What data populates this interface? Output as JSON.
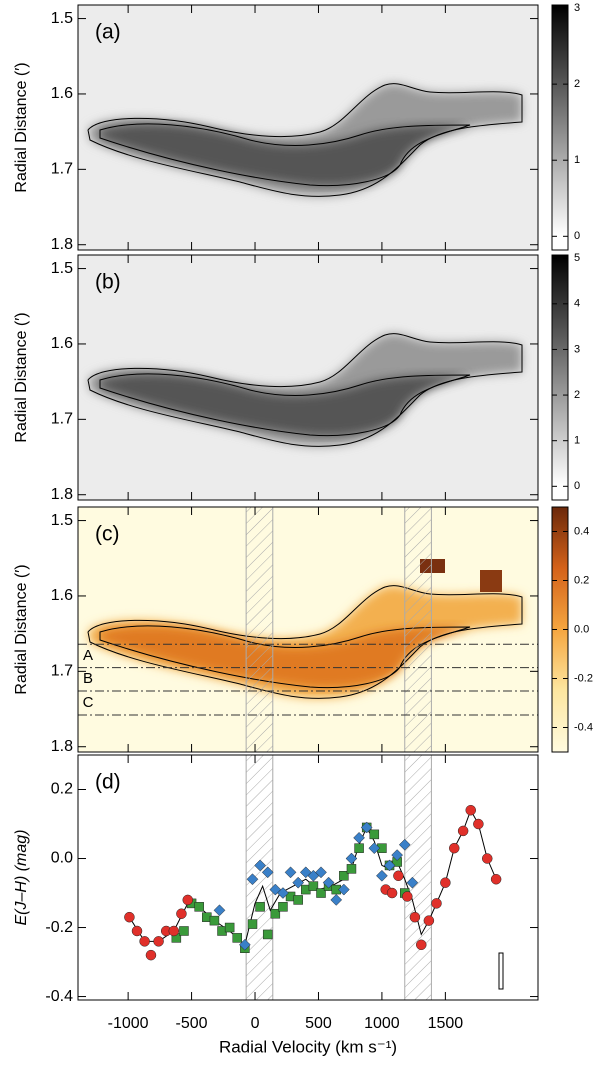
{
  "chart_data": [
    {
      "type": "image",
      "label": "(a)",
      "ylabel": "Radial Distance (′)",
      "xlim": [
        -1395,
        2230
      ],
      "xticks": [
        -1000,
        -500,
        0,
        500,
        1000,
        1500
      ],
      "ylim": [
        1.482,
        1.807
      ],
      "yticks": [
        1.5,
        1.6,
        1.7,
        1.8
      ],
      "colorbar": {
        "colormap": "gray",
        "lim": [
          -0.18,
          3.04
        ],
        "ticks": [
          0,
          1,
          2,
          3
        ]
      }
    },
    {
      "type": "image",
      "label": "(b)",
      "ylabel": "Radial Distance (′)",
      "xlim": [
        -1395,
        2230
      ],
      "xticks": [
        -1000,
        -500,
        0,
        500,
        1000,
        1500
      ],
      "ylim": [
        1.482,
        1.807
      ],
      "yticks": [
        1.5,
        1.6,
        1.7,
        1.8
      ],
      "colorbar": {
        "colormap": "gray",
        "lim": [
          -0.3,
          5.07
        ],
        "ticks": [
          0,
          1,
          2,
          3,
          4,
          5
        ]
      }
    },
    {
      "type": "image",
      "label": "(c)",
      "ylabel": "Radial Distance (′)",
      "xlim": [
        -1395,
        2230
      ],
      "xticks": [
        -1000,
        -500,
        0,
        500,
        1000,
        1500
      ],
      "ylim": [
        1.482,
        1.807
      ],
      "yticks": [
        1.5,
        1.6,
        1.7,
        1.8
      ],
      "colorbar": {
        "colormap": "orange",
        "lim": [
          -0.5,
          0.5
        ],
        "ticks": [
          -0.4,
          -0.2,
          {
            "value": 0,
            "label": "0.0"
          },
          0.2,
          0.4
        ]
      },
      "bands": [
        [
          -70,
          140
        ],
        [
          1180,
          1390
        ]
      ],
      "cuts": [
        1.664,
        1.695,
        1.726,
        1.758
      ],
      "cut_labels": [
        {
          "text": "A",
          "color": "#e0302a"
        },
        {
          "text": "B",
          "color": "#3a9a3a"
        },
        {
          "text": "C",
          "color": "#3a80c8"
        }
      ]
    },
    {
      "type": "scatter",
      "label": "(d)",
      "ylabel": "E(J–H) (mag)",
      "xlabel": "Radial Velocity (km s⁻¹)",
      "xlim": [
        -1395,
        2230
      ],
      "xticks": [
        -1000,
        -500,
        0,
        500,
        1000,
        1500
      ],
      "ylim": [
        -0.41,
        0.3
      ],
      "yticks": [
        -0.4,
        -0.2,
        {
          "value": 0,
          "label": "0.0"
        },
        0.2
      ],
      "bands": [
        [
          -70,
          140
        ],
        [
          1180,
          1390
        ]
      ],
      "series": [
        {
          "color": "#000000",
          "marker": "line",
          "x": [
            -990,
            -870,
            -760,
            -640,
            -530,
            -440,
            -320,
            -200,
            -80,
            0,
            60,
            120,
            200,
            300,
            400,
            500,
            600,
            700,
            760,
            820,
            880,
            940,
            1000,
            1060,
            1120,
            1180,
            1240,
            1310,
            1370,
            1430,
            1500,
            1570,
            1640,
            1700,
            1760,
            1830,
            1900
          ],
          "values": [
            -0.17,
            -0.24,
            -0.24,
            -0.21,
            -0.13,
            -0.14,
            -0.18,
            -0.21,
            -0.25,
            -0.13,
            -0.08,
            -0.15,
            -0.1,
            -0.08,
            -0.06,
            -0.09,
            -0.08,
            -0.06,
            -0.03,
            0.04,
            0.09,
            0.05,
            -0.02,
            -0.03,
            -0.01,
            -0.06,
            -0.12,
            -0.22,
            -0.18,
            -0.13,
            -0.07,
            0.03,
            0.08,
            0.14,
            0.1,
            0.0,
            -0.06
          ]
        },
        {
          "color": "#3a9a3a",
          "marker": "square",
          "x": [
            -620,
            -560,
            -500,
            -440,
            -380,
            -320,
            -260,
            -200,
            -140,
            -80,
            -20,
            40,
            100,
            160,
            220,
            280,
            340,
            400,
            460,
            520,
            580,
            640,
            700,
            760,
            820,
            880,
            940,
            1000,
            1060,
            1120,
            1180
          ],
          "values": [
            -0.23,
            -0.21,
            -0.13,
            -0.14,
            -0.17,
            -0.18,
            -0.21,
            -0.2,
            -0.23,
            -0.26,
            -0.19,
            -0.14,
            -0.22,
            -0.16,
            -0.14,
            -0.11,
            -0.12,
            -0.09,
            -0.08,
            -0.1,
            -0.08,
            -0.09,
            -0.05,
            -0.03,
            0.03,
            0.09,
            0.07,
            0.03,
            -0.02,
            -0.01,
            -0.1
          ]
        },
        {
          "color": "#3a80c8",
          "marker": "diamond",
          "x": [
            -280,
            -80,
            -20,
            40,
            100,
            160,
            220,
            280,
            340,
            400,
            460,
            520,
            580,
            640,
            700,
            760,
            820,
            880,
            940,
            1000,
            1060,
            1120,
            1180,
            1240
          ],
          "values": [
            -0.15,
            -0.25,
            -0.06,
            -0.02,
            -0.04,
            -0.09,
            -0.1,
            -0.04,
            -0.07,
            -0.04,
            -0.05,
            -0.04,
            -0.07,
            -0.12,
            -0.09,
            0.0,
            0.06,
            0.09,
            0.03,
            -0.05,
            -0.02,
            0.01,
            0.04,
            -0.07
          ]
        },
        {
          "color": "#e0302a",
          "marker": "circle",
          "x": [
            -990,
            -930,
            -870,
            -820,
            -760,
            -700,
            -640,
            -580,
            -530,
            1030,
            1080,
            1130,
            1200,
            1260,
            1310,
            1370,
            1430,
            1500,
            1570,
            1640,
            1700,
            1760,
            1830,
            1900
          ],
          "values": [
            -0.17,
            -0.21,
            -0.24,
            -0.28,
            -0.24,
            -0.21,
            -0.21,
            -0.16,
            -0.12,
            -0.09,
            -0.1,
            -0.05,
            -0.11,
            -0.17,
            -0.25,
            -0.18,
            -0.13,
            -0.07,
            0.03,
            0.08,
            0.14,
            0.1,
            0.0,
            -0.06
          ]
        }
      ]
    }
  ]
}
